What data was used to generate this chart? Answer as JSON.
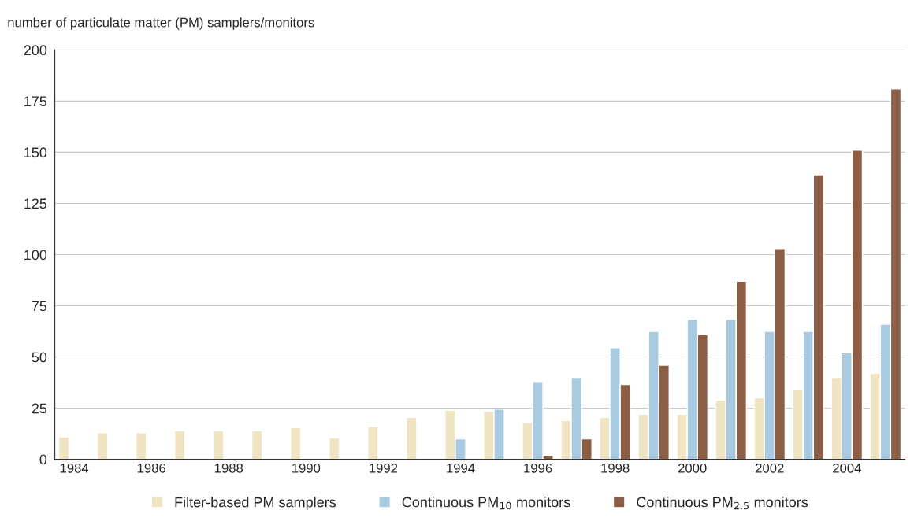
{
  "chart_data": {
    "type": "bar",
    "ylabel": "number of particulate matter (PM) samplers/monitors",
    "categories": [
      "1984",
      null,
      "1986",
      null,
      "1988",
      null,
      "1990",
      null,
      "1992",
      null,
      "1994",
      null,
      "1996",
      null,
      "1998",
      null,
      "2000",
      null,
      "2002",
      null,
      "2004",
      null
    ],
    "series": [
      {
        "name": "Filter-based PM samplers",
        "color": "#efe5c2",
        "values": [
          11,
          13,
          13,
          14,
          14,
          14,
          15.5,
          10.5,
          16,
          20.5,
          24,
          23.5,
          18,
          19,
          20.5,
          22,
          22,
          29,
          30,
          34,
          40,
          42
        ]
      },
      {
        "name": "Continuous PM$_{10}$ monitors",
        "color": "#a8cbe2",
        "values": [
          null,
          null,
          null,
          null,
          null,
          null,
          null,
          null,
          null,
          null,
          10,
          24.5,
          38,
          40,
          54.5,
          62.5,
          68.5,
          68.5,
          62.5,
          62.5,
          52,
          66
        ]
      },
      {
        "name": "Continuous PM$_{2.5}$ monitors",
        "color": "#8c5e45",
        "values": [
          null,
          null,
          null,
          null,
          null,
          null,
          null,
          null,
          null,
          null,
          null,
          null,
          2,
          10,
          36.5,
          46,
          61,
          87,
          103,
          139,
          151,
          181
        ]
      }
    ],
    "ylim": [
      0,
      200
    ],
    "yticks": [
      0,
      25,
      50,
      75,
      100,
      125,
      150,
      175,
      200
    ],
    "grid": "y",
    "legend": "bottom"
  }
}
